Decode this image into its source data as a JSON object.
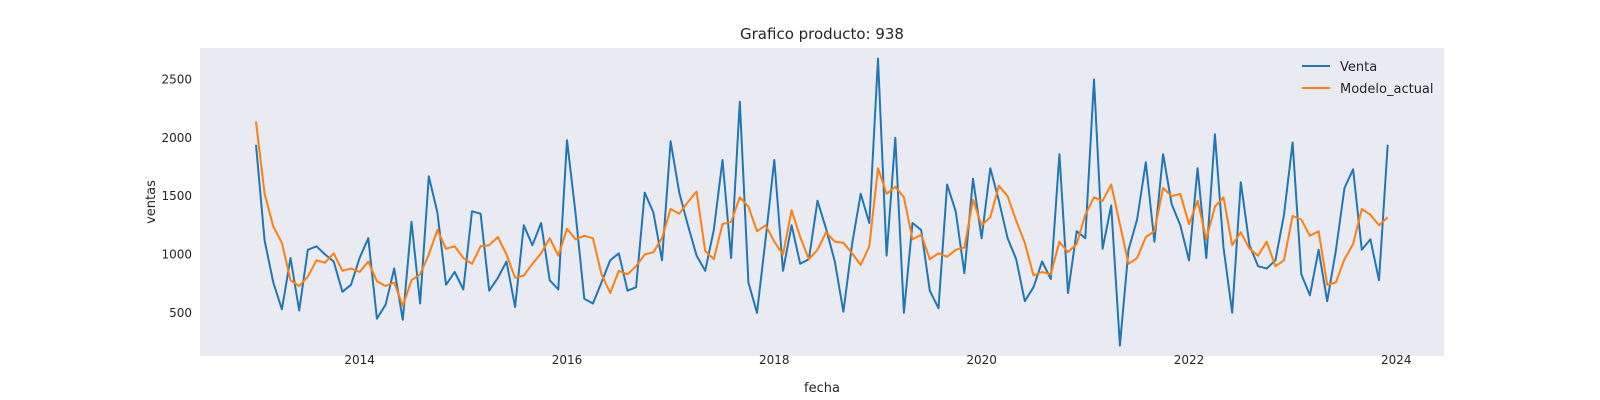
{
  "chart_data": {
    "type": "line",
    "title": "Grafico producto: 938",
    "xlabel": "fecha",
    "ylabel": "ventas",
    "x_start": "2013-01",
    "xlim": [
      2012.46,
      2024.46
    ],
    "ylim": [
      130,
      2770
    ],
    "x_ticks": [
      "2014",
      "2016",
      "2018",
      "2020",
      "2022",
      "2024"
    ],
    "y_ticks": [
      "500",
      "1000",
      "1500",
      "2000",
      "2500"
    ],
    "grid": false,
    "legend_position": "top-right",
    "background": "#EAEAF2",
    "series": [
      {
        "name": "Venta",
        "color": "#1F77B4",
        "values": [
          1940,
          1120,
          760,
          530,
          970,
          520,
          1040,
          1070,
          1000,
          940,
          680,
          740,
          970,
          1140,
          450,
          570,
          880,
          440,
          1280,
          580,
          1670,
          1360,
          740,
          850,
          700,
          1370,
          1350,
          690,
          800,
          940,
          550,
          1250,
          1080,
          1270,
          780,
          700,
          1980,
          1350,
          620,
          580,
          760,
          950,
          1010,
          690,
          720,
          1530,
          1360,
          950,
          1970,
          1530,
          1250,
          990,
          860,
          1210,
          1810,
          970,
          2310,
          760,
          500,
          1140,
          1810,
          860,
          1250,
          920,
          960,
          1460,
          1220,
          940,
          510,
          1090,
          1520,
          1270,
          2680,
          990,
          2000,
          500,
          1270,
          1210,
          690,
          540,
          1600,
          1370,
          840,
          1650,
          1140,
          1740,
          1460,
          1140,
          960,
          600,
          720,
          940,
          790,
          1860,
          670,
          1200,
          1140,
          2500,
          1050,
          1420,
          220,
          1040,
          1300,
          1790,
          1110,
          1860,
          1430,
          1250,
          950,
          1740,
          970,
          2030,
          1060,
          500,
          1620,
          1080,
          900,
          880,
          950,
          1340,
          1960,
          830,
          650,
          1040,
          600,
          1030,
          1570,
          1730,
          1040,
          1130,
          780,
          1940
        ]
      },
      {
        "name": "Modelo_actual",
        "color": "#FF7F0E",
        "values": [
          2140,
          1520,
          1240,
          1100,
          780,
          730,
          810,
          950,
          930,
          1010,
          860,
          880,
          850,
          940,
          770,
          730,
          760,
          560,
          780,
          830,
          1000,
          1210,
          1050,
          1070,
          970,
          920,
          1070,
          1080,
          1150,
          1000,
          800,
          820,
          920,
          1010,
          1140,
          990,
          1220,
          1130,
          1160,
          1140,
          830,
          670,
          860,
          830,
          900,
          1000,
          1020,
          1140,
          1390,
          1350,
          1450,
          1540,
          1030,
          960,
          1260,
          1280,
          1490,
          1410,
          1200,
          1250,
          1110,
          1000,
          1380,
          1150,
          960,
          1040,
          1190,
          1110,
          1100,
          1010,
          910,
          1070,
          1740,
          1520,
          1580,
          1490,
          1130,
          1170,
          960,
          1010,
          980,
          1040,
          1060,
          1470,
          1250,
          1320,
          1590,
          1500,
          1290,
          1100,
          820,
          850,
          830,
          1110,
          1020,
          1090,
          1340,
          1490,
          1460,
          1600,
          1260,
          920,
          970,
          1150,
          1200,
          1570,
          1500,
          1520,
          1260,
          1460,
          1130,
          1410,
          1490,
          1080,
          1190,
          1050,
          990,
          1110,
          900,
          950,
          1330,
          1300,
          1160,
          1200,
          740,
          760,
          960,
          1090,
          1390,
          1340,
          1250,
          1320
        ]
      }
    ]
  }
}
